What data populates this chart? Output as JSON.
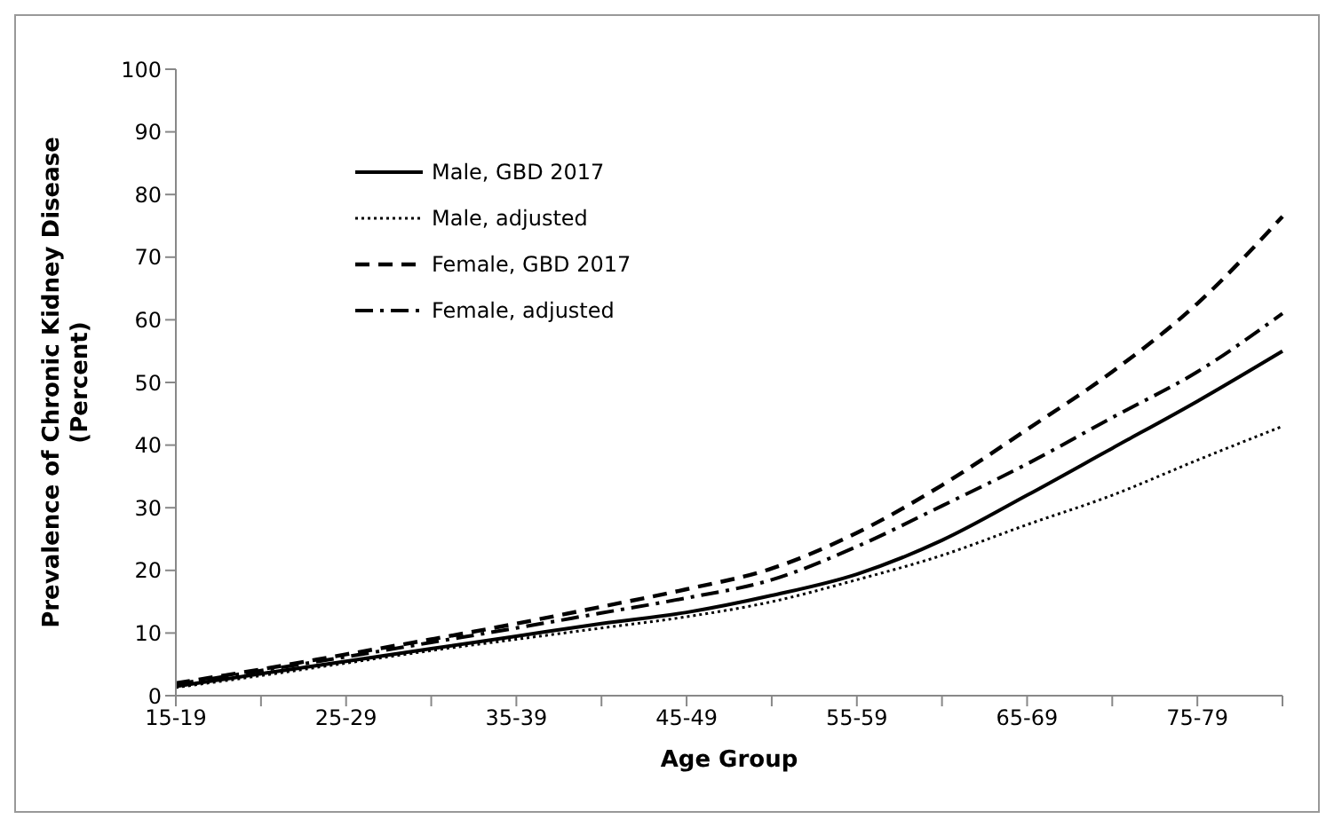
{
  "chart_data": {
    "type": "line",
    "xlabel": "Age Group",
    "ylabel": "Prevalence of Chronic Kidney Disease\n(Percent)",
    "categories": [
      "15-19",
      null,
      "25-29",
      null,
      "35-39",
      null,
      "45-49",
      null,
      "55-59",
      null,
      "65-69",
      null,
      "75-79",
      null
    ],
    "series": [
      {
        "name": "Male, GBD 2017",
        "color": "#000000",
        "line_style": "solid",
        "values": [
          1.5,
          3.5,
          5.5,
          7.5,
          9.5,
          11.5,
          13.3,
          16,
          19.4,
          24.8,
          32,
          39.5,
          47,
          55
        ]
      },
      {
        "name": "Male, adjusted",
        "color": "#000000",
        "line_style": "dotted",
        "values": [
          1.3,
          3.2,
          5.2,
          7.2,
          9,
          10.8,
          12.6,
          15,
          18.5,
          22.4,
          27.3,
          32,
          37.6,
          43
        ]
      },
      {
        "name": "Female, GBD 2017",
        "color": "#000000",
        "line_style": "dashed",
        "values": [
          2,
          4.2,
          6.6,
          9,
          11.5,
          14.2,
          17,
          20.3,
          26,
          33.6,
          42.5,
          51.7,
          62.6,
          76.5
        ]
      },
      {
        "name": "Female, adjusted",
        "color": "#000000",
        "line_style": "dashdot",
        "values": [
          1.8,
          4,
          6.2,
          8.5,
          10.8,
          13.2,
          15.6,
          18.5,
          23.8,
          30.3,
          37,
          44.4,
          51.7,
          61
        ]
      }
    ],
    "ylim": [
      0,
      100
    ],
    "yticks": [
      0,
      10,
      20,
      30,
      40,
      50,
      60,
      70,
      80,
      90,
      100
    ],
    "grid": false,
    "legend": "top left",
    "marker": "none"
  }
}
